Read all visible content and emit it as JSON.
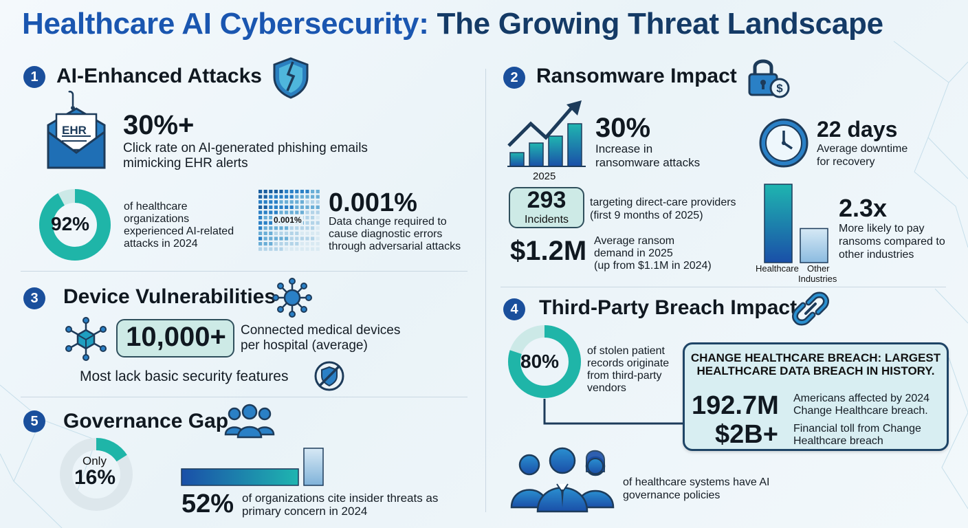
{
  "title": {
    "part1": "Healthcare AI Cybersecurity:",
    "part2": "The Growing Threat Landscape"
  },
  "colors": {
    "navy": "#1a4f9c",
    "teal": "#1fb5a8",
    "blue": "#1a56b0",
    "light_teal": "#cdeae6"
  },
  "sections": {
    "ai_attacks": {
      "number": "1",
      "title": "AI-Enhanced Attacks",
      "icon": "broken-shield-icon",
      "phishing": {
        "envelope_label": "EHR",
        "value": "30%+",
        "line1": "Click rate on AI-generated phishing emails",
        "line2": "mimicking EHR alerts"
      },
      "orgs": {
        "value": "92%",
        "percent": 92,
        "text": "of healthcare organizations experienced AI-related attacks in 2024"
      },
      "adversarial": {
        "grid_label": "0.001%",
        "value": "0.001%",
        "text": "Data change required to cause diagnostic errors through adversarial attacks"
      }
    },
    "ransomware": {
      "number": "2",
      "title": "Ransomware Impact",
      "icon": "lock-dollar-icon",
      "increase": {
        "chart_label": "2025",
        "value": "30%",
        "text": "Increase in ransomware attacks"
      },
      "downtime": {
        "value": "22 days",
        "text": "Average downtime for recovery"
      },
      "incidents": {
        "value": "293",
        "label": "Incidents",
        "text": "targeting direct-care providers (first 9 months of 2025)"
      },
      "demand": {
        "value": "$1.2M",
        "line1": "Average ransom",
        "line2": "demand in 2025",
        "line3": "(up from $1.1M in 2024)"
      },
      "comparison": {
        "value": "2.3x",
        "text": "More likely to pay ransoms compared to other industries",
        "bar1_label": "Healthcare",
        "bar2_label_1": "Other",
        "bar2_label_2": "Industries",
        "bar1_value": 2.3,
        "bar2_value": 1
      }
    },
    "devices": {
      "number": "3",
      "title": "Device Vulnerabilities",
      "icon": "network-hub-icon",
      "value": "10,000+",
      "text": "Connected medical devices per hospital (average)",
      "note": "Most lack basic security features"
    },
    "third_party": {
      "number": "4",
      "title": "Third-Party Breach Impact",
      "icon": "chain-link-icon",
      "value": "80%",
      "percent": 80,
      "text": "of stolen patient records originate from third-party vendors",
      "breach": {
        "headline": "CHANGE HEALTHCARE BREACH: LARGEST HEALTHCARE DATA BREACH IN HISTORY.",
        "affected_value": "192.7M",
        "affected_text": "Americans affected by 2024 Change Healthcare breach.",
        "cost_value": "$2B+",
        "cost_text": "Financial toll from Change Healthcare breach"
      },
      "governance_text": "of healthcare systems have AI governance policies"
    },
    "governance": {
      "number": "5",
      "title": "Governance Gap",
      "icon": "people-group-icon",
      "only": "Only",
      "value": "16%",
      "percent": 16,
      "insider_value": "52%",
      "insider_text": "of organizations cite insider threats as primary concern in 2024",
      "bar_value": 52
    }
  }
}
